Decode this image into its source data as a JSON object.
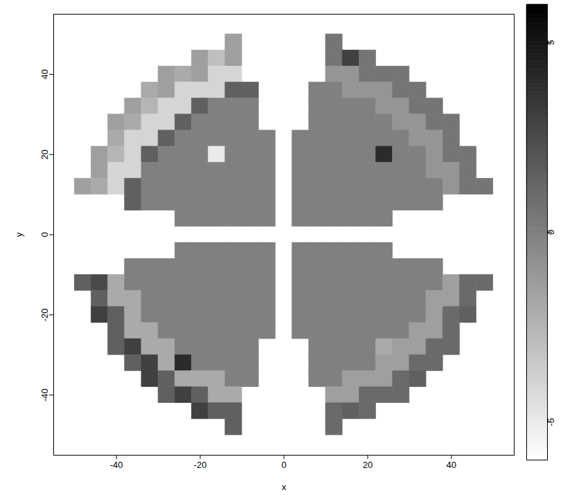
{
  "chart_data": {
    "type": "heatmap",
    "x_label": "x",
    "y_label": "y",
    "xlim": [
      -55,
      55
    ],
    "ylim": [
      -55,
      55
    ],
    "xticks": [
      -40,
      -20,
      0,
      20,
      40
    ],
    "yticks": [
      -40,
      -20,
      0,
      20,
      40
    ],
    "color_range": [
      -6,
      6
    ],
    "color_ticks": [
      -5,
      0,
      5
    ],
    "x": [
      -48,
      -44,
      -40,
      -36,
      -32,
      -28,
      -24,
      -20,
      -16,
      -12,
      -8,
      -4,
      0,
      4,
      8,
      12,
      16,
      20,
      24,
      28,
      32,
      36,
      40,
      44,
      48
    ],
    "y": [
      48,
      44,
      40,
      36,
      32,
      28,
      24,
      20,
      16,
      12,
      8,
      4,
      0,
      -4,
      -8,
      -12,
      -16,
      -20,
      -24,
      -28,
      -32,
      -36,
      -40,
      -44,
      -48
    ],
    "cells": [
      [
        null,
        null,
        null,
        null,
        null,
        null,
        null,
        null,
        null,
        -1.5,
        null,
        null,
        null,
        null,
        null,
        0.5,
        null,
        null,
        null,
        null,
        null,
        null,
        null,
        null,
        null
      ],
      [
        null,
        null,
        null,
        null,
        null,
        null,
        null,
        -1.5,
        -3,
        -1.5,
        null,
        null,
        null,
        null,
        null,
        0.5,
        3,
        0.5,
        null,
        null,
        null,
        null,
        null,
        null,
        null
      ],
      [
        null,
        null,
        null,
        null,
        null,
        -1.5,
        -2,
        -1.5,
        -4,
        -4,
        null,
        null,
        null,
        null,
        null,
        -1,
        -1,
        0.5,
        0.5,
        0.5,
        null,
        null,
        null,
        null,
        null
      ],
      [
        null,
        null,
        null,
        null,
        -2,
        -1.5,
        -4,
        -4,
        -4,
        1.5,
        1.5,
        null,
        null,
        null,
        0,
        0,
        -1,
        -1,
        -1,
        0.5,
        0.5,
        null,
        null,
        null,
        null
      ],
      [
        null,
        null,
        null,
        -1.5,
        -2.5,
        -4,
        -4,
        1.5,
        0,
        0,
        0,
        null,
        null,
        null,
        0,
        0,
        0,
        0,
        -1,
        -1,
        0.5,
        0.5,
        null,
        null,
        null
      ],
      [
        null,
        null,
        -1.5,
        -2,
        -4,
        -4,
        1.5,
        0,
        0,
        0,
        0,
        null,
        null,
        null,
        0,
        0,
        0,
        0,
        0,
        -1,
        -1,
        0.5,
        0.5,
        null,
        null
      ],
      [
        null,
        null,
        -2,
        -4,
        -4,
        1.5,
        0,
        0,
        0,
        0,
        0,
        0,
        null,
        0,
        0,
        0,
        0,
        0,
        0,
        0,
        -1,
        -1,
        0.5,
        null,
        null
      ],
      [
        null,
        -1.5,
        -2.5,
        -4,
        1.5,
        0,
        0,
        0,
        -5,
        0,
        0,
        0,
        null,
        0,
        0,
        0,
        0,
        0,
        4,
        0,
        0,
        -1,
        0.5,
        0.5,
        null
      ],
      [
        null,
        -1.5,
        -4,
        -4,
        0,
        0,
        0,
        0,
        0,
        0,
        0,
        0,
        null,
        0,
        0,
        0,
        0,
        0,
        0,
        0,
        0,
        -1,
        -1,
        0.5,
        null
      ],
      [
        -1.5,
        -2,
        -4,
        1.5,
        0,
        0,
        0,
        0,
        0,
        0,
        0,
        0,
        null,
        0,
        0,
        0,
        0,
        0,
        0,
        0,
        0,
        0,
        -1,
        0.5,
        0.5
      ],
      [
        null,
        null,
        null,
        1.5,
        0,
        0,
        0,
        0,
        0,
        0,
        0,
        0,
        null,
        0,
        0,
        0,
        0,
        0,
        0,
        0,
        0,
        0,
        null,
        null,
        null
      ],
      [
        null,
        null,
        null,
        null,
        null,
        null,
        0,
        0,
        0,
        0,
        0,
        0,
        null,
        0,
        0,
        0,
        0,
        0,
        0,
        null,
        null,
        null,
        null,
        null,
        null
      ],
      [
        null,
        null,
        null,
        null,
        null,
        null,
        null,
        null,
        null,
        null,
        null,
        null,
        null,
        null,
        null,
        null,
        null,
        null,
        null,
        null,
        null,
        null,
        null,
        null,
        null
      ],
      [
        null,
        null,
        null,
        null,
        null,
        null,
        0,
        0,
        0,
        0,
        0,
        0,
        null,
        0,
        0,
        0,
        0,
        0,
        0,
        null,
        null,
        null,
        null,
        null,
        null
      ],
      [
        null,
        null,
        null,
        0,
        0,
        0,
        0,
        0,
        0,
        0,
        0,
        0,
        null,
        0,
        0,
        0,
        0,
        0,
        0,
        0,
        0,
        0,
        null,
        null,
        null
      ],
      [
        1.5,
        2.5,
        -2,
        0,
        0,
        0,
        0,
        0,
        0,
        0,
        0,
        0,
        null,
        0,
        0,
        0,
        0,
        0,
        0,
        0,
        0,
        0,
        -1.5,
        1,
        1
      ],
      [
        null,
        1.5,
        -2,
        -2,
        0,
        0,
        0,
        0,
        0,
        0,
        0,
        0,
        null,
        0,
        0,
        0,
        0,
        0,
        0,
        0,
        0,
        -1.5,
        -1.5,
        1,
        null
      ],
      [
        null,
        3,
        1.5,
        -2,
        0,
        0,
        0,
        0,
        0,
        0,
        0,
        0,
        null,
        0,
        0,
        0,
        0,
        0,
        0,
        0,
        0,
        -1.5,
        1,
        1.5,
        null
      ],
      [
        null,
        null,
        1.5,
        -2,
        -2,
        0,
        0,
        0,
        0,
        0,
        0,
        0,
        null,
        0,
        0,
        0,
        0,
        0,
        0,
        0,
        -1.5,
        -1.5,
        1,
        null,
        null
      ],
      [
        null,
        null,
        1.5,
        3,
        -2,
        -2,
        0,
        0,
        0,
        0,
        0,
        null,
        null,
        null,
        0,
        0,
        0,
        0,
        -2,
        -1.5,
        -1.5,
        1,
        1,
        null,
        null
      ],
      [
        null,
        null,
        null,
        1.5,
        3,
        -2,
        4,
        0,
        0,
        0,
        0,
        null,
        null,
        null,
        0,
        0,
        0,
        0,
        -1.5,
        -1.5,
        1,
        1,
        null,
        null,
        null
      ],
      [
        null,
        null,
        null,
        null,
        3,
        1.5,
        -2,
        -2,
        -2,
        0,
        0,
        null,
        null,
        null,
        0,
        0,
        -1.5,
        -1.5,
        -1.5,
        1,
        1.5,
        null,
        null,
        null,
        null
      ],
      [
        null,
        null,
        null,
        null,
        null,
        1.5,
        3,
        1.5,
        -2,
        -2,
        null,
        null,
        null,
        null,
        null,
        -1.5,
        -1.5,
        1,
        1,
        1,
        null,
        null,
        null,
        null,
        null
      ],
      [
        null,
        null,
        null,
        null,
        null,
        null,
        null,
        3,
        1.5,
        1.5,
        null,
        null,
        null,
        null,
        null,
        1,
        1.5,
        1,
        null,
        null,
        null,
        null,
        null,
        null,
        null
      ],
      [
        null,
        null,
        null,
        null,
        null,
        null,
        null,
        null,
        null,
        1.5,
        null,
        null,
        null,
        null,
        null,
        1,
        null,
        null,
        null,
        null,
        null,
        null,
        null,
        null,
        null
      ]
    ]
  }
}
